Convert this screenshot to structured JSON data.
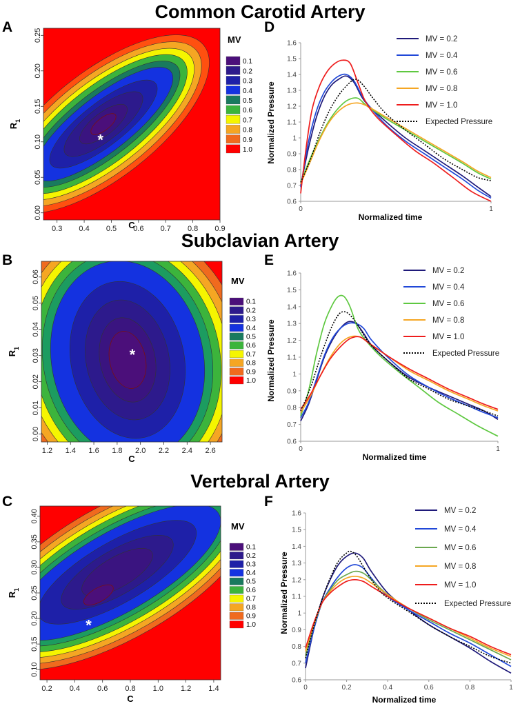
{
  "section_titles": [
    "Common Carotid Artery",
    "Subclavian Artery",
    "Vertebral Artery"
  ],
  "panel_letters": [
    "A",
    "B",
    "C",
    "D",
    "E",
    "F"
  ],
  "colors": {
    "mv01": "#4b0f7a",
    "mv02": "#2d1a8c",
    "mv03": "#1e20a8",
    "mv04": "#1432e0",
    "mv05": "#197a5e",
    "mv06": "#3cb43c",
    "mv07": "#f5f500",
    "mv08": "#f5a623",
    "mv09": "#f06a1e",
    "mv10": "#ff0000",
    "mv_line_02": "#1f1a7a",
    "mv_line_04": "#2148d8",
    "mv_line_06": "#5ec840",
    "mv_line_08": "#f5a623",
    "mv_line_10": "#ee1c1c",
    "expected": "#000000",
    "f_line_06": "#6aa84f"
  },
  "chart_data": [
    {
      "id": "A",
      "type": "heatmap",
      "title": "Common Carotid Artery",
      "xlabel": "C",
      "ylabel": "R1",
      "ylabel_main": "R",
      "ylabel_sub": "1",
      "xlim": [
        0.25,
        0.9
      ],
      "ylim": [
        -0.01,
        0.26
      ],
      "xticks": [
        "0.3",
        "0.4",
        "0.5",
        "0.6",
        "0.7",
        "0.8",
        "0.9"
      ],
      "yticks": [
        "0.00",
        "0.05",
        "0.10",
        "0.15",
        "0.20",
        "0.25"
      ],
      "optimum": [
        0.46,
        0.105
      ],
      "optimum_label": "*",
      "legend_title": "MV",
      "legend_entries": [
        "0.1",
        "0.2",
        "0.3",
        "0.4",
        "0.5",
        "0.6",
        "0.7",
        "0.8",
        "0.9",
        "1.0"
      ]
    },
    {
      "id": "B",
      "type": "heatmap",
      "title": "Subclavian Artery",
      "xlabel": "C",
      "ylabel": "R1",
      "ylabel_main": "R",
      "ylabel_sub": "1",
      "xlim": [
        1.15,
        2.7
      ],
      "ylim": [
        -0.003,
        0.066
      ],
      "xticks": [
        "1.2",
        "1.4",
        "1.6",
        "1.8",
        "2.0",
        "2.2",
        "2.4",
        "2.6"
      ],
      "yticks": [
        "0.00",
        "0.01",
        "0.02",
        "0.03",
        "0.04",
        "0.05",
        "0.06"
      ],
      "optimum": [
        1.93,
        0.031
      ],
      "optimum_label": "*",
      "legend_title": "MV",
      "legend_entries": [
        "0.1",
        "0.2",
        "0.3",
        "0.4",
        "0.5",
        "0.6",
        "0.7",
        "0.8",
        "0.9",
        "1.0"
      ]
    },
    {
      "id": "C",
      "type": "heatmap",
      "title": "Vertebral Artery",
      "xlabel": "C",
      "ylabel": "R1",
      "ylabel_main": "R",
      "ylabel_sub": "1",
      "xlim": [
        0.15,
        1.45
      ],
      "ylim": [
        0.08,
        0.42
      ],
      "xticks": [
        "0.2",
        "0.4",
        "0.6",
        "0.8",
        "1.0",
        "1.2",
        "1.4"
      ],
      "yticks": [
        "0.10",
        "0.15",
        "0.20",
        "0.25",
        "0.30",
        "0.35",
        "0.40"
      ],
      "optimum": [
        0.5,
        0.19
      ],
      "optimum_label": "*",
      "legend_title": "MV",
      "legend_entries": [
        "0.1",
        "0.2",
        "0.3",
        "0.4",
        "0.5",
        "0.6",
        "0.7",
        "0.8",
        "0.9",
        "1.0"
      ]
    },
    {
      "id": "D",
      "type": "line",
      "xlabel": "Normalized time",
      "ylabel": "Normalized Pressure",
      "xlim": [
        0,
        1
      ],
      "ylim": [
        0.6,
        1.6
      ],
      "xticks": [
        "0",
        "1"
      ],
      "yticks": [
        "0.6",
        "0.7",
        "0.8",
        "0.9",
        "1",
        "1.1",
        "1.2",
        "1.3",
        "1.4",
        "1.5",
        "1.6"
      ],
      "series": [
        {
          "name": "MV = 0.2",
          "style": "solid",
          "color": "#1f1a7a",
          "x": [
            0,
            0.04,
            0.08,
            0.12,
            0.16,
            0.2,
            0.24,
            0.28,
            0.32,
            0.36,
            0.45,
            0.55,
            0.65,
            0.75,
            0.85,
            0.93,
            1.0
          ],
          "y": [
            0.7,
            0.93,
            1.12,
            1.25,
            1.33,
            1.37,
            1.39,
            1.35,
            1.26,
            1.2,
            1.1,
            1.0,
            0.92,
            0.84,
            0.76,
            0.69,
            0.63
          ]
        },
        {
          "name": "MV = 0.4",
          "style": "solid",
          "color": "#2148d8",
          "x": [
            0,
            0.04,
            0.08,
            0.12,
            0.16,
            0.2,
            0.24,
            0.28,
            0.32,
            0.36,
            0.45,
            0.55,
            0.65,
            0.75,
            0.85,
            0.93,
            1.0
          ],
          "y": [
            0.69,
            0.97,
            1.16,
            1.28,
            1.35,
            1.39,
            1.4,
            1.36,
            1.27,
            1.2,
            1.08,
            0.98,
            0.9,
            0.82,
            0.74,
            0.67,
            0.62
          ]
        },
        {
          "name": "MV = 0.6",
          "style": "solid",
          "color": "#5ec840",
          "x": [
            0,
            0.05,
            0.1,
            0.15,
            0.2,
            0.25,
            0.3,
            0.35,
            0.45,
            0.55,
            0.65,
            0.75,
            0.85,
            0.93,
            1.0
          ],
          "y": [
            0.72,
            0.87,
            1.0,
            1.11,
            1.19,
            1.24,
            1.25,
            1.2,
            1.12,
            1.05,
            0.98,
            0.91,
            0.84,
            0.78,
            0.74
          ]
        },
        {
          "name": "MV = 0.8",
          "style": "solid",
          "color": "#f5a623",
          "x": [
            0,
            0.05,
            0.1,
            0.15,
            0.2,
            0.25,
            0.3,
            0.35,
            0.45,
            0.55,
            0.65,
            0.75,
            0.85,
            0.93,
            1.0
          ],
          "y": [
            0.71,
            0.85,
            0.99,
            1.1,
            1.17,
            1.21,
            1.22,
            1.2,
            1.13,
            1.06,
            0.99,
            0.92,
            0.85,
            0.79,
            0.75
          ]
        },
        {
          "name": "MV = 1.0",
          "style": "solid",
          "color": "#ee1c1c",
          "x": [
            0,
            0.03,
            0.06,
            0.1,
            0.14,
            0.18,
            0.22,
            0.26,
            0.3,
            0.34,
            0.4,
            0.5,
            0.6,
            0.7,
            0.8,
            0.9,
            1.0
          ],
          "y": [
            0.65,
            0.95,
            1.18,
            1.33,
            1.42,
            1.47,
            1.49,
            1.47,
            1.35,
            1.23,
            1.13,
            1.02,
            0.92,
            0.84,
            0.75,
            0.66,
            0.6
          ]
        },
        {
          "name": "Expected Pressure",
          "style": "dotted",
          "color": "#000000",
          "x": [
            0,
            0.05,
            0.1,
            0.15,
            0.2,
            0.25,
            0.29,
            0.33,
            0.38,
            0.45,
            0.55,
            0.65,
            0.75,
            0.85,
            0.93,
            1.0
          ],
          "y": [
            0.72,
            0.86,
            1.03,
            1.17,
            1.27,
            1.34,
            1.37,
            1.33,
            1.25,
            1.15,
            1.05,
            0.96,
            0.87,
            0.8,
            0.75,
            0.73
          ]
        }
      ]
    },
    {
      "id": "E",
      "type": "line",
      "xlabel": "Normalized time",
      "ylabel": "Normalized Pressure",
      "xlim": [
        0,
        1
      ],
      "ylim": [
        0.6,
        1.6
      ],
      "xticks": [
        "0",
        "1"
      ],
      "yticks": [
        "0.6",
        "0.7",
        "0.8",
        "0.9",
        "1",
        "1.1",
        "1.2",
        "1.3",
        "1.4",
        "1.5",
        "1.6"
      ],
      "series": [
        {
          "name": "MV = 0.2",
          "style": "solid",
          "color": "#1f1a7a",
          "x": [
            0,
            0.04,
            0.08,
            0.12,
            0.16,
            0.2,
            0.24,
            0.28,
            0.32,
            0.36,
            0.45,
            0.55,
            0.65,
            0.75,
            0.85,
            0.93,
            1.0
          ],
          "y": [
            0.72,
            0.82,
            0.96,
            1.1,
            1.2,
            1.27,
            1.31,
            1.3,
            1.24,
            1.17,
            1.07,
            0.98,
            0.92,
            0.87,
            0.82,
            0.78,
            0.73
          ]
        },
        {
          "name": "MV = 0.4",
          "style": "solid",
          "color": "#2148d8",
          "x": [
            0,
            0.04,
            0.08,
            0.12,
            0.16,
            0.2,
            0.24,
            0.28,
            0.32,
            0.36,
            0.45,
            0.55,
            0.65,
            0.75,
            0.85,
            0.93,
            1.0
          ],
          "y": [
            0.74,
            0.83,
            0.97,
            1.11,
            1.21,
            1.27,
            1.3,
            1.3,
            1.27,
            1.2,
            1.09,
            0.99,
            0.92,
            0.86,
            0.81,
            0.77,
            0.74
          ]
        },
        {
          "name": "MV = 0.6",
          "style": "solid",
          "color": "#5ec840",
          "x": [
            0,
            0.04,
            0.08,
            0.12,
            0.16,
            0.19,
            0.22,
            0.25,
            0.29,
            0.33,
            0.4,
            0.5,
            0.6,
            0.7,
            0.8,
            0.9,
            1.0
          ],
          "y": [
            0.75,
            0.9,
            1.12,
            1.3,
            1.41,
            1.46,
            1.46,
            1.4,
            1.27,
            1.2,
            1.11,
            1.01,
            0.92,
            0.83,
            0.76,
            0.69,
            0.63
          ]
        },
        {
          "name": "MV = 0.8",
          "style": "solid",
          "color": "#f5a623",
          "x": [
            0,
            0.05,
            0.1,
            0.15,
            0.2,
            0.25,
            0.3,
            0.35,
            0.45,
            0.55,
            0.65,
            0.75,
            0.85,
            0.93,
            1.0
          ],
          "y": [
            0.77,
            0.87,
            0.99,
            1.1,
            1.18,
            1.22,
            1.22,
            1.18,
            1.1,
            1.02,
            0.96,
            0.9,
            0.85,
            0.81,
            0.78
          ]
        },
        {
          "name": "MV = 1.0",
          "style": "solid",
          "color": "#ee1c1c",
          "x": [
            0,
            0.05,
            0.1,
            0.15,
            0.2,
            0.25,
            0.3,
            0.35,
            0.45,
            0.55,
            0.65,
            0.75,
            0.85,
            0.93,
            1.0
          ],
          "y": [
            0.79,
            0.88,
            0.99,
            1.09,
            1.16,
            1.21,
            1.22,
            1.18,
            1.1,
            1.03,
            0.97,
            0.91,
            0.86,
            0.82,
            0.79
          ]
        },
        {
          "name": "Expected Pressure",
          "style": "dotted",
          "color": "#000000",
          "x": [
            0,
            0.05,
            0.1,
            0.15,
            0.19,
            0.22,
            0.25,
            0.29,
            0.35,
            0.45,
            0.55,
            0.65,
            0.75,
            0.85,
            0.93,
            1.0
          ],
          "y": [
            0.78,
            0.92,
            1.1,
            1.26,
            1.35,
            1.37,
            1.35,
            1.29,
            1.18,
            1.07,
            0.97,
            0.91,
            0.85,
            0.81,
            0.78,
            0.75
          ]
        }
      ]
    },
    {
      "id": "F",
      "type": "line",
      "xlabel": "Normalized time",
      "ylabel": "Normalized Pressure",
      "xlim": [
        0,
        1
      ],
      "ylim": [
        0.6,
        1.6
      ],
      "xticks": [
        "0",
        "0.2",
        "0.4",
        "0.6",
        "0.8",
        "1"
      ],
      "yticks": [
        "0.6",
        "0.7",
        "0.8",
        "0.9",
        "1",
        "1.1",
        "1.2",
        "1.3",
        "1.4",
        "1.5",
        "1.6"
      ],
      "series": [
        {
          "name": "MV = 0.2",
          "style": "solid",
          "color": "#1f1a7a",
          "x": [
            0,
            0.04,
            0.08,
            0.12,
            0.16,
            0.2,
            0.24,
            0.28,
            0.32,
            0.4,
            0.5,
            0.6,
            0.7,
            0.8,
            0.9,
            1.0
          ],
          "y": [
            0.67,
            0.9,
            1.08,
            1.2,
            1.29,
            1.34,
            1.36,
            1.33,
            1.25,
            1.12,
            1.02,
            0.93,
            0.86,
            0.79,
            0.71,
            0.64
          ]
        },
        {
          "name": "MV = 0.4",
          "style": "solid",
          "color": "#2148d8",
          "x": [
            0,
            0.04,
            0.08,
            0.12,
            0.16,
            0.2,
            0.24,
            0.28,
            0.32,
            0.4,
            0.5,
            0.6,
            0.7,
            0.8,
            0.9,
            1.0
          ],
          "y": [
            0.7,
            0.9,
            1.06,
            1.15,
            1.22,
            1.27,
            1.29,
            1.27,
            1.21,
            1.1,
            1.02,
            0.95,
            0.88,
            0.82,
            0.75,
            0.68
          ]
        },
        {
          "name": "MV = 0.6",
          "style": "solid",
          "color": "#6aa84f",
          "x": [
            0,
            0.04,
            0.08,
            0.12,
            0.16,
            0.2,
            0.24,
            0.28,
            0.32,
            0.4,
            0.5,
            0.6,
            0.7,
            0.8,
            0.9,
            1.0
          ],
          "y": [
            0.74,
            0.92,
            1.06,
            1.14,
            1.2,
            1.23,
            1.25,
            1.24,
            1.2,
            1.11,
            1.03,
            0.96,
            0.9,
            0.84,
            0.78,
            0.72
          ]
        },
        {
          "name": "MV = 0.8",
          "style": "solid",
          "color": "#f5a623",
          "x": [
            0,
            0.04,
            0.08,
            0.12,
            0.16,
            0.2,
            0.24,
            0.28,
            0.32,
            0.4,
            0.5,
            0.6,
            0.7,
            0.8,
            0.9,
            1.0
          ],
          "y": [
            0.77,
            0.93,
            1.06,
            1.13,
            1.18,
            1.21,
            1.22,
            1.21,
            1.18,
            1.11,
            1.03,
            0.97,
            0.91,
            0.85,
            0.79,
            0.74
          ]
        },
        {
          "name": "MV = 1.0",
          "style": "solid",
          "color": "#ee1c1c",
          "x": [
            0,
            0.04,
            0.08,
            0.12,
            0.16,
            0.2,
            0.24,
            0.28,
            0.32,
            0.4,
            0.5,
            0.6,
            0.7,
            0.8,
            0.9,
            1.0
          ],
          "y": [
            0.79,
            0.94,
            1.06,
            1.12,
            1.16,
            1.19,
            1.2,
            1.19,
            1.16,
            1.1,
            1.03,
            0.97,
            0.91,
            0.86,
            0.8,
            0.75
          ]
        },
        {
          "name": "Expected Pressure",
          "style": "dotted",
          "color": "#000000",
          "x": [
            0,
            0.04,
            0.08,
            0.12,
            0.16,
            0.2,
            0.22,
            0.25,
            0.3,
            0.35,
            0.4,
            0.5,
            0.6,
            0.7,
            0.8,
            0.9,
            1.0
          ],
          "y": [
            0.73,
            0.92,
            1.08,
            1.21,
            1.31,
            1.36,
            1.37,
            1.34,
            1.24,
            1.15,
            1.09,
            1.01,
            0.93,
            0.86,
            0.8,
            0.74,
            0.7
          ]
        }
      ]
    }
  ]
}
